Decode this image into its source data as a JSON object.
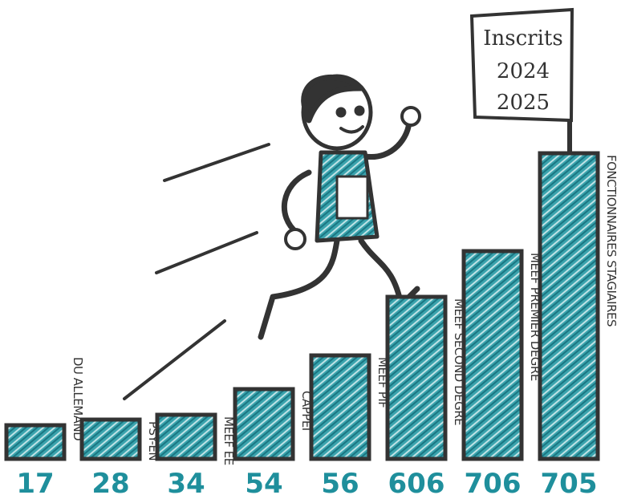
{
  "flag": {
    "lines": [
      "Inscrits",
      "2024",
      "2025"
    ]
  },
  "steps": [
    {
      "label": "DU ALLEMAND",
      "value": "17"
    },
    {
      "label": "PSY-EN",
      "value": "28"
    },
    {
      "label": "MEEF EE",
      "value": "34"
    },
    {
      "label": "CAPPEI",
      "value": "54"
    },
    {
      "label": "MEEF PIF",
      "value": "56"
    },
    {
      "label": "MEEF SECOND DEGRÉ",
      "value": "606"
    },
    {
      "label": "MEEF PREMIER DEGRÉ",
      "value": "706"
    },
    {
      "label": "FONCTIONNAIRES STAGIAIRES",
      "value": "705"
    }
  ]
}
